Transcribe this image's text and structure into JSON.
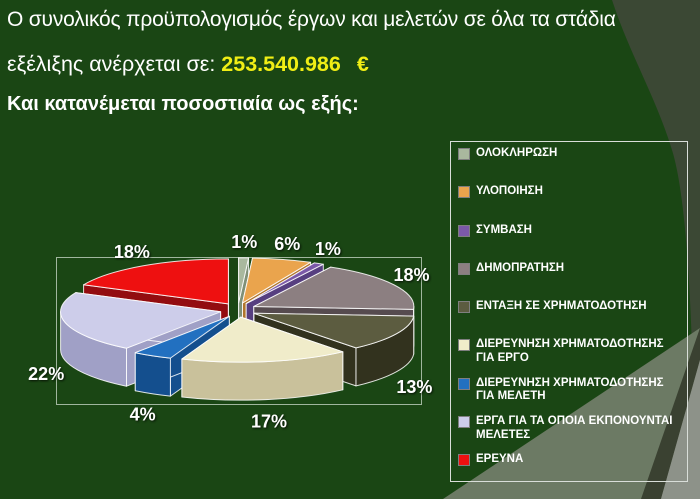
{
  "title": {
    "line1": "Ο συνολικός προϋπολογισμός έργων και μελετών σε όλα τα στάδια",
    "line2_prefix": "εξέλιξης ανέρχεται σε: ",
    "amount": "253.540.986",
    "currency": "€",
    "line3": "Και κατανέμεται ποσοστιαία ως εξής:"
  },
  "colors": {
    "background_base": "#1a4614",
    "title_text": "#ffffff",
    "amount_text": "#f0ee15",
    "swoosh_dark": "#3b4834",
    "band_sage": "#6c7a64",
    "band_charcoal": "#3a4131",
    "corner_gray": "#8d9289",
    "legend_border": "#d9ded9",
    "plot_frame_border": "#d4e2d4"
  },
  "chart_data": {
    "type": "pie",
    "style": "3d-exploded",
    "unit": "%",
    "legend_position": "right",
    "labels": [
      "ΟΛΟΚΛΗΡΩΣΗ",
      "ΥΛΟΠΟΙΗΣΗ",
      "ΣΥΜΒΑΣΗ",
      "ΔΗΜΟΠΡΑΤΗΣΗ",
      "ΕΝΤΑΞΗ ΣΕ ΧΡΗΜΑΤΟΔΟΤΗΣΗ",
      "ΔΙΕΡΕΥΝΗΣΗ ΧΡΗΜΑΤΟΔΟΤΗΣΗΣ ΓΙΑ ΕΡΓΟ",
      "ΔΙΕΡΕΥΝΗΣΗ ΧΡΗΜΑΤΟΔΟΤΗΣΗΣ ΓΙΑ ΜΕΛΕΤΗ",
      "ΕΡΓΑ ΓΙΑ ΤΑ ΟΠΟΙΑ ΕΚΠΟΝΟΥΝΤΑΙ ΜΕΛΕΤΕΣ",
      "ΕΡΕΥΝΑ"
    ],
    "values": [
      1,
      6,
      1,
      18,
      13,
      17,
      4,
      22,
      18
    ],
    "percent_labels": [
      "1%",
      "6%",
      "1%",
      "18%",
      "13%",
      "17%",
      "4%",
      "22%",
      "18%"
    ],
    "colors": [
      "#a9b89e",
      "#eaa44d",
      "#7b59a8",
      "#8c7f81",
      "#5c5c40",
      "#f0ecca",
      "#2270c0",
      "#cdcdea",
      "#ee1010"
    ],
    "wall_colors": [
      "#7f9077",
      "#b0752c",
      "#573f80",
      "#564b4f",
      "#32321e",
      "#c9c19b",
      "#144f8e",
      "#a0a0c6",
      "#930c10"
    ]
  }
}
